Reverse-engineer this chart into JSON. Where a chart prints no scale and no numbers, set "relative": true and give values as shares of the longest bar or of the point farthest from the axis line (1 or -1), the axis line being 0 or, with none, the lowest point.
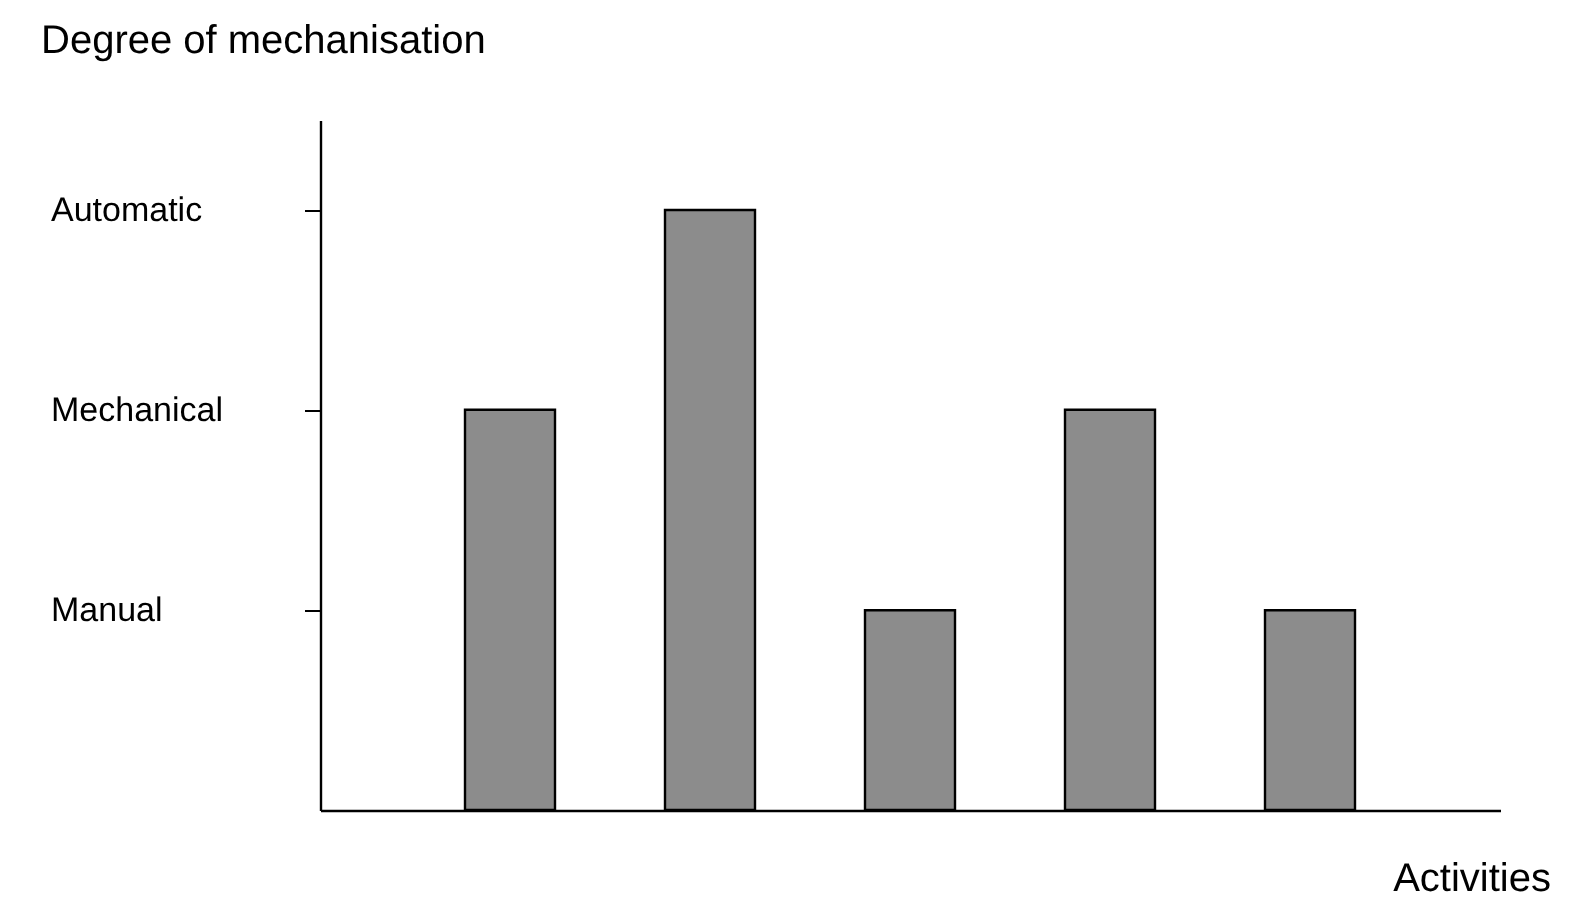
{
  "chart_data": {
    "type": "bar",
    "xlabel": "Activities",
    "ylabel": "Degree of mechanisation",
    "categories": [
      null,
      null,
      null,
      null,
      null
    ],
    "values": [
      0.667,
      1,
      0.333,
      0.667,
      0.333
    ],
    "relative": true,
    "color": "#8c8c8c",
    "annotations": [
      "Manual",
      "Mechanical",
      "Automatic"
    ],
    "tick_labels": "y",
    "grid": false
  }
}
